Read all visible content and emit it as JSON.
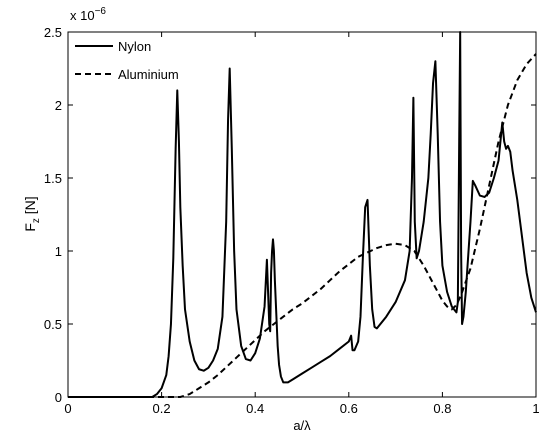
{
  "chart_data": {
    "type": "line",
    "title": "",
    "xlabel": "a/λ",
    "ylabel_main": "F",
    "ylabel_sub": "z",
    "ylabel_rest": " [N]",
    "exponent_base": "x 10",
    "exponent_power": "−6",
    "xlim": [
      0,
      1
    ],
    "ylim": [
      0,
      2.5
    ],
    "xticks": [
      0,
      0.2,
      0.4,
      0.6,
      0.8,
      1
    ],
    "xtick_labels": [
      "0",
      "0.2",
      "0.4",
      "0.6",
      "0.8",
      "1"
    ],
    "yticks": [
      0,
      0.5,
      1,
      1.5,
      2,
      2.5
    ],
    "ytick_labels": [
      "0",
      "0.5",
      "1",
      "1.5",
      "2",
      "2.5"
    ],
    "grid": false,
    "legend_position": "top-left",
    "series": [
      {
        "name": "Nylon",
        "style": "solid",
        "color": "#000000",
        "x": [
          0.0,
          0.1,
          0.18,
          0.19,
          0.2,
          0.21,
          0.215,
          0.22,
          0.225,
          0.23,
          0.2335,
          0.237,
          0.24,
          0.245,
          0.25,
          0.26,
          0.27,
          0.28,
          0.29,
          0.3,
          0.31,
          0.32,
          0.33,
          0.338,
          0.342,
          0.3455,
          0.35,
          0.355,
          0.36,
          0.37,
          0.38,
          0.39,
          0.4,
          0.41,
          0.42,
          0.425,
          0.43,
          0.432,
          0.434,
          0.436,
          0.438,
          0.44,
          0.442,
          0.446,
          0.448,
          0.451,
          0.455,
          0.46,
          0.47,
          0.48,
          0.5,
          0.52,
          0.54,
          0.56,
          0.58,
          0.6,
          0.605,
          0.608,
          0.612,
          0.62,
          0.625,
          0.63,
          0.635,
          0.64,
          0.645,
          0.65,
          0.655,
          0.66,
          0.68,
          0.7,
          0.72,
          0.73,
          0.735,
          0.738,
          0.741,
          0.745,
          0.75,
          0.76,
          0.77,
          0.775,
          0.78,
          0.785,
          0.79,
          0.795,
          0.8,
          0.81,
          0.82,
          0.83,
          0.833,
          0.836,
          0.838,
          0.84,
          0.842,
          0.845,
          0.85,
          0.86,
          0.865,
          0.87,
          0.88,
          0.89,
          0.9,
          0.91,
          0.92,
          0.928,
          0.932,
          0.936,
          0.94,
          0.945,
          0.95,
          0.96,
          0.97,
          0.98,
          0.99,
          1.0
        ],
        "y": [
          0.0,
          0.0,
          0.0,
          0.02,
          0.06,
          0.15,
          0.28,
          0.5,
          0.95,
          1.7,
          2.1,
          1.75,
          1.3,
          0.9,
          0.6,
          0.38,
          0.25,
          0.19,
          0.18,
          0.2,
          0.25,
          0.33,
          0.55,
          1.2,
          1.9,
          2.25,
          1.7,
          1.0,
          0.6,
          0.35,
          0.26,
          0.25,
          0.3,
          0.4,
          0.62,
          0.94,
          0.5,
          0.45,
          0.85,
          1.0,
          1.08,
          1.0,
          0.8,
          0.5,
          0.35,
          0.22,
          0.14,
          0.1,
          0.1,
          0.12,
          0.16,
          0.2,
          0.24,
          0.28,
          0.33,
          0.38,
          0.42,
          0.32,
          0.32,
          0.38,
          0.55,
          0.95,
          1.3,
          1.35,
          0.9,
          0.6,
          0.48,
          0.47,
          0.55,
          0.65,
          0.8,
          1.0,
          1.5,
          2.05,
          1.2,
          0.95,
          1.0,
          1.2,
          1.5,
          1.8,
          2.15,
          2.3,
          1.8,
          1.2,
          0.9,
          0.72,
          0.62,
          0.58,
          0.65,
          1.8,
          2.5,
          1.0,
          0.5,
          0.55,
          0.72,
          1.2,
          1.48,
          1.45,
          1.38,
          1.37,
          1.4,
          1.5,
          1.62,
          1.88,
          1.75,
          1.7,
          1.72,
          1.68,
          1.55,
          1.35,
          1.1,
          0.85,
          0.68,
          0.58
        ]
      },
      {
        "name": "Aluminium",
        "style": "dashed",
        "color": "#000000",
        "x": [
          0.0,
          0.2,
          0.24,
          0.26,
          0.28,
          0.3,
          0.32,
          0.34,
          0.36,
          0.38,
          0.4,
          0.42,
          0.44,
          0.46,
          0.48,
          0.5,
          0.52,
          0.54,
          0.56,
          0.58,
          0.6,
          0.62,
          0.64,
          0.66,
          0.68,
          0.7,
          0.72,
          0.74,
          0.76,
          0.78,
          0.8,
          0.81,
          0.82,
          0.83,
          0.84,
          0.86,
          0.88,
          0.9,
          0.92,
          0.94,
          0.96,
          0.98,
          1.0
        ],
        "y": [
          0.0,
          0.0,
          0.0,
          0.02,
          0.06,
          0.1,
          0.15,
          0.21,
          0.27,
          0.33,
          0.39,
          0.45,
          0.5,
          0.55,
          0.6,
          0.64,
          0.69,
          0.74,
          0.8,
          0.86,
          0.91,
          0.96,
          0.99,
          1.02,
          1.04,
          1.05,
          1.04,
          1.0,
          0.9,
          0.78,
          0.66,
          0.62,
          0.6,
          0.63,
          0.7,
          0.88,
          1.15,
          1.45,
          1.75,
          2.0,
          2.17,
          2.28,
          2.35
        ]
      }
    ]
  }
}
